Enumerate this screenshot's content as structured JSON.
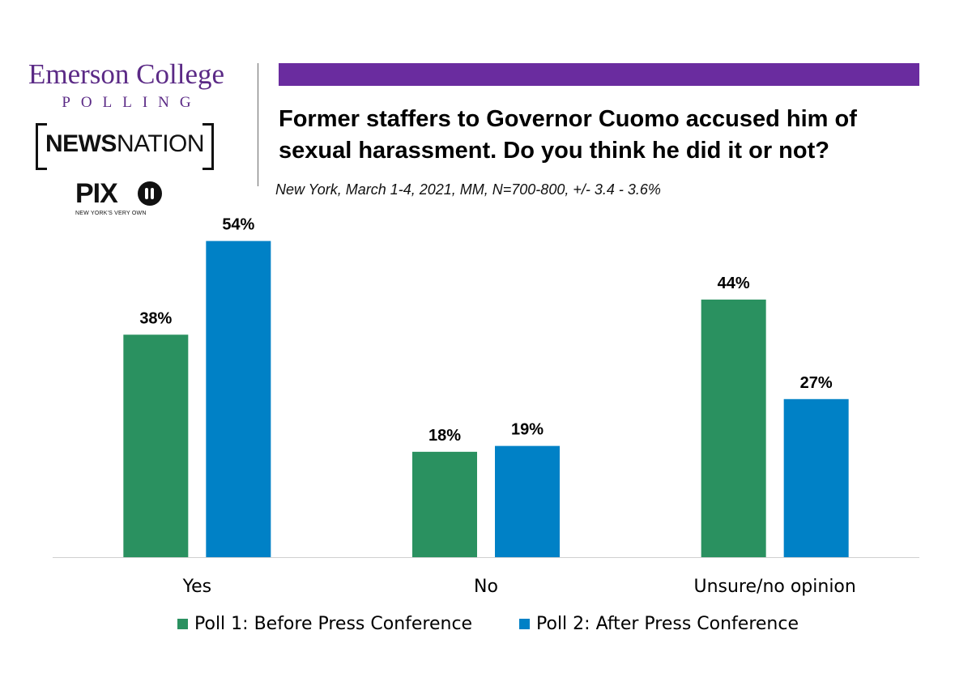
{
  "logos": {
    "emerson": "Emerson College",
    "polling": "POLLING",
    "newsnation_bold": "NEWS",
    "newsnation_light": "NATION",
    "pix": "PIX",
    "pix_tagline": "NEW YORK'S VERY OWN"
  },
  "colors": {
    "accent_bar": "#6a2c9f",
    "poll1": "#2a9160",
    "poll2": "#0081c6",
    "emerson_purple": "#5b2a86"
  },
  "chart_data": {
    "type": "bar",
    "title": "Former staffers to Governor Cuomo accused him of sexual harassment. Do you think he did it or not?",
    "subtitle": "New York, March 1-4, 2021, MM, N=700-800, +/- 3.4 - 3.6%",
    "categories": [
      "Yes",
      "No",
      "Unsure/no opinion"
    ],
    "series": [
      {
        "name": "Poll 1: Before Press Conference",
        "values": [
          38,
          18,
          44
        ],
        "labels": [
          "38%",
          "18%",
          "44%"
        ],
        "color": "#2a9160"
      },
      {
        "name": "Poll 2: After Press Conference",
        "values": [
          54,
          19,
          27
        ],
        "labels": [
          "54%",
          "19%",
          "27%"
        ],
        "color": "#0081c6"
      }
    ],
    "ylim": [
      0,
      66
    ],
    "grid": false,
    "legend_position": "bottom"
  }
}
